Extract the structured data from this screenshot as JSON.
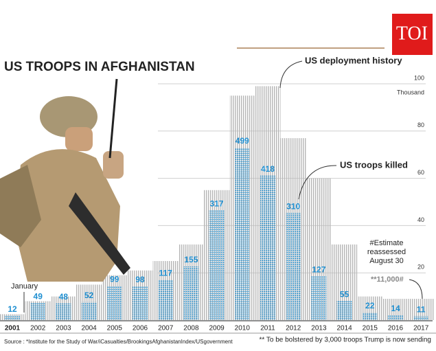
{
  "chart_data": {
    "type": "bar",
    "title": "US TROOPS IN AFGHANISTAN",
    "brand": "TOI",
    "categories": [
      "2001",
      "2002",
      "2003",
      "2004",
      "2005",
      "2006",
      "2007",
      "2008",
      "2009",
      "2010",
      "2011",
      "2012",
      "2013",
      "2014",
      "2015",
      "2016",
      "2017"
    ],
    "series": [
      {
        "name": "US deployment history",
        "color": "#b8b8b8",
        "values": [
          2.5,
          8,
          10,
          15,
          19,
          21,
          25,
          32,
          55,
          95,
          99,
          77,
          60,
          32,
          10,
          9,
          9
        ]
      },
      {
        "name": "US troops killed",
        "color": "#1f8fd1",
        "axis": "y2",
        "values": [
          12,
          49,
          48,
          52,
          99,
          98,
          117,
          155,
          317,
          499,
          418,
          310,
          127,
          55,
          22,
          14,
          11
        ]
      }
    ],
    "ylim": [
      0,
      100
    ],
    "yticks": [
      20,
      40,
      60,
      80,
      100
    ],
    "y2lim": [
      0,
      684
    ],
    "y_unit": "Thousand",
    "grid": true,
    "annotations": {
      "january": "January",
      "estimate": [
        "#Estimate",
        "reassessed",
        "August 30"
      ],
      "estimate_value": "**11,000#"
    },
    "source": "Source : *Institute for the Study of War/iCasualties/BrookingsAfghanistanIndex/USgovernment",
    "footnote": "** To be bolstered by 3,000 troops Trump is now sending"
  }
}
